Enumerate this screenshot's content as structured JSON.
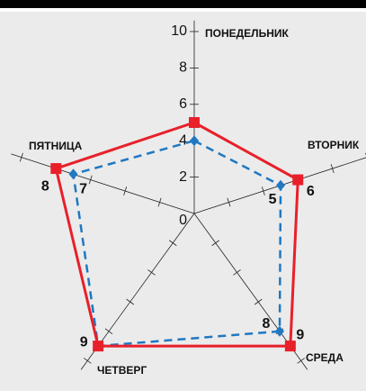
{
  "chart_data": {
    "type": "radar",
    "categories": [
      "ПОНЕДЕЛЬНИК",
      "ВТОРНИК",
      "СРЕДА",
      "ЧЕТВЕРГ",
      "ПЯТНИЦА"
    ],
    "series": [
      {
        "name": null,
        "color": "#e8202a",
        "values": [
          5,
          6,
          9,
          9,
          8
        ],
        "value_labels": [
          null,
          "6",
          "9",
          "9",
          "8"
        ]
      },
      {
        "name": null,
        "color": "#1f78c1",
        "values": [
          4,
          5,
          8,
          9,
          7
        ],
        "value_labels": [
          null,
          "5",
          "8",
          null,
          "7"
        ]
      }
    ],
    "ylim": [
      0,
      10
    ],
    "yticks": [
      0,
      2,
      4,
      6,
      8,
      10
    ]
  }
}
